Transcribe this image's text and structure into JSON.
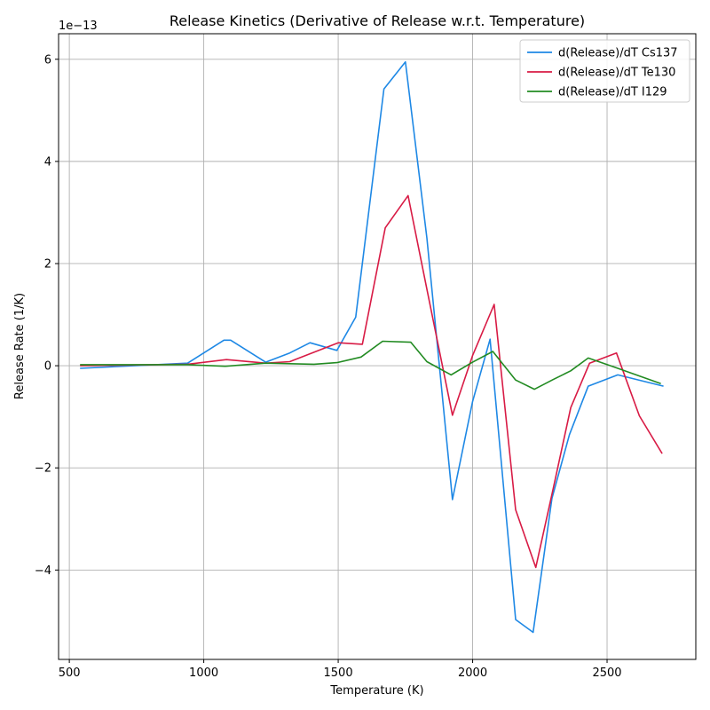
{
  "chart_data": {
    "type": "line",
    "title": "Release Kinetics (Derivative of Release w.r.t. Temperature)",
    "xlabel": "Temperature (K)",
    "ylabel": "Release Rate (1/K)",
    "offset_label": "1e−13",
    "xlim": [
      460,
      2830
    ],
    "ylim": [
      -5.75,
      6.5
    ],
    "xticks": [
      500,
      1000,
      1500,
      2000,
      2500
    ],
    "yticks": [
      -4,
      -2,
      0,
      2,
      4,
      6
    ],
    "grid": true,
    "legend_position": "top-right",
    "series": [
      {
        "name": "d(Release)/dT Cs137",
        "color": "#1e88e5",
        "points": [
          [
            540,
            -0.05
          ],
          [
            940,
            0.05
          ],
          [
            1075,
            0.5
          ],
          [
            1100,
            0.5
          ],
          [
            1230,
            0.07
          ],
          [
            1320,
            0.25
          ],
          [
            1395,
            0.45
          ],
          [
            1495,
            0.3
          ],
          [
            1565,
            0.95
          ],
          [
            1670,
            5.42
          ],
          [
            1750,
            5.95
          ],
          [
            1830,
            2.5
          ],
          [
            1925,
            -2.62
          ],
          [
            2000,
            -0.7
          ],
          [
            2065,
            0.52
          ],
          [
            2160,
            -4.97
          ],
          [
            2225,
            -5.22
          ],
          [
            2295,
            -2.6
          ],
          [
            2360,
            -1.35
          ],
          [
            2430,
            -0.4
          ],
          [
            2540,
            -0.18
          ],
          [
            2710,
            -0.4
          ]
        ]
      },
      {
        "name": "d(Release)/dT Te130",
        "color": "#d81b45",
        "points": [
          [
            540,
            0.0
          ],
          [
            940,
            0.03
          ],
          [
            1085,
            0.12
          ],
          [
            1230,
            0.05
          ],
          [
            1320,
            0.08
          ],
          [
            1500,
            0.45
          ],
          [
            1590,
            0.42
          ],
          [
            1675,
            2.7
          ],
          [
            1760,
            3.33
          ],
          [
            1830,
            1.5
          ],
          [
            1925,
            -0.97
          ],
          [
            2000,
            0.2
          ],
          [
            2080,
            1.2
          ],
          [
            2160,
            -2.82
          ],
          [
            2235,
            -3.95
          ],
          [
            2300,
            -2.4
          ],
          [
            2365,
            -0.82
          ],
          [
            2435,
            0.05
          ],
          [
            2535,
            0.25
          ],
          [
            2620,
            -0.98
          ],
          [
            2705,
            -1.72
          ]
        ]
      },
      {
        "name": "d(Release)/dT I129",
        "color": "#228b22",
        "points": [
          [
            540,
            0.02
          ],
          [
            940,
            0.02
          ],
          [
            1080,
            -0.01
          ],
          [
            1230,
            0.05
          ],
          [
            1410,
            0.03
          ],
          [
            1495,
            0.06
          ],
          [
            1585,
            0.17
          ],
          [
            1665,
            0.48
          ],
          [
            1770,
            0.46
          ],
          [
            1830,
            0.08
          ],
          [
            1920,
            -0.18
          ],
          [
            2000,
            0.07
          ],
          [
            2075,
            0.28
          ],
          [
            2160,
            -0.28
          ],
          [
            2230,
            -0.46
          ],
          [
            2300,
            -0.27
          ],
          [
            2365,
            -0.1
          ],
          [
            2430,
            0.15
          ],
          [
            2540,
            -0.05
          ],
          [
            2700,
            -0.35
          ]
        ]
      }
    ]
  }
}
